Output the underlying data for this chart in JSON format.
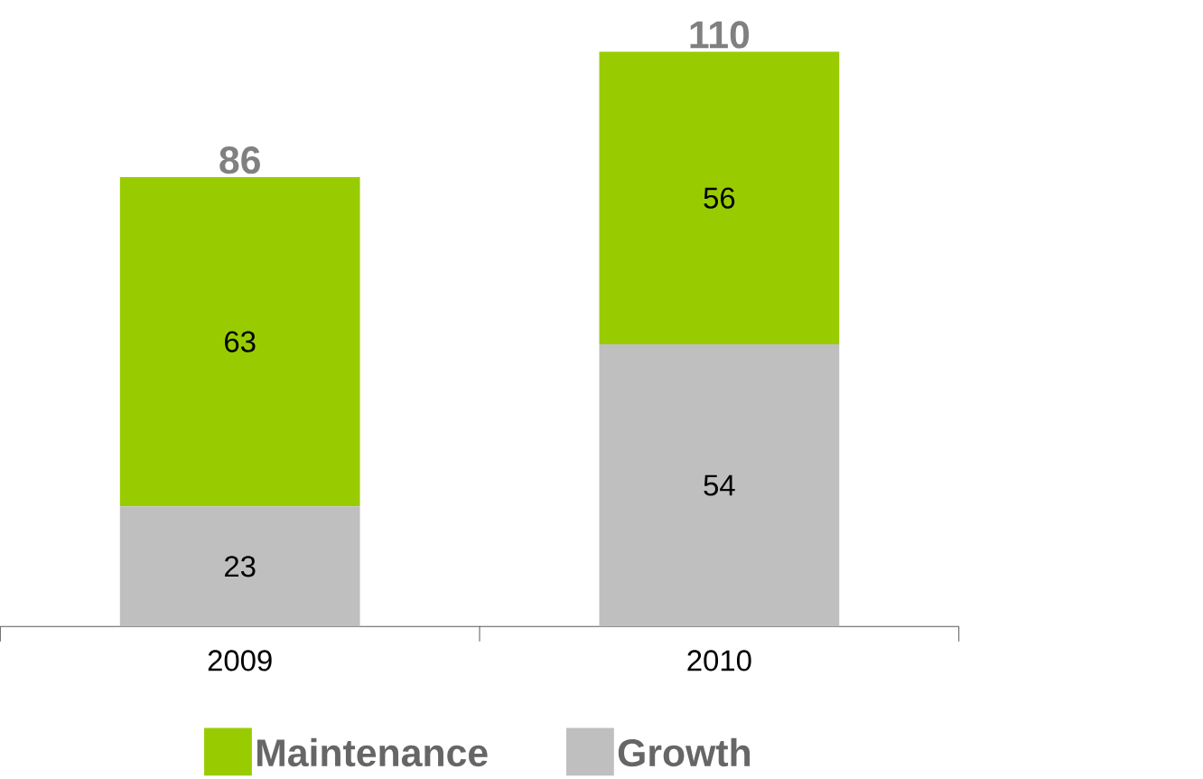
{
  "chart_data": {
    "type": "bar",
    "stacked": true,
    "categories": [
      "2009",
      "2010"
    ],
    "series": [
      {
        "name": "Growth",
        "color": "#bfbfbf",
        "values": [
          23,
          54
        ]
      },
      {
        "name": "Maintenance",
        "color": "#99cc00",
        "values": [
          63,
          56
        ]
      }
    ],
    "data_labels": true,
    "totals": [
      "86",
      "110"
    ],
    "legend": "bottom"
  }
}
